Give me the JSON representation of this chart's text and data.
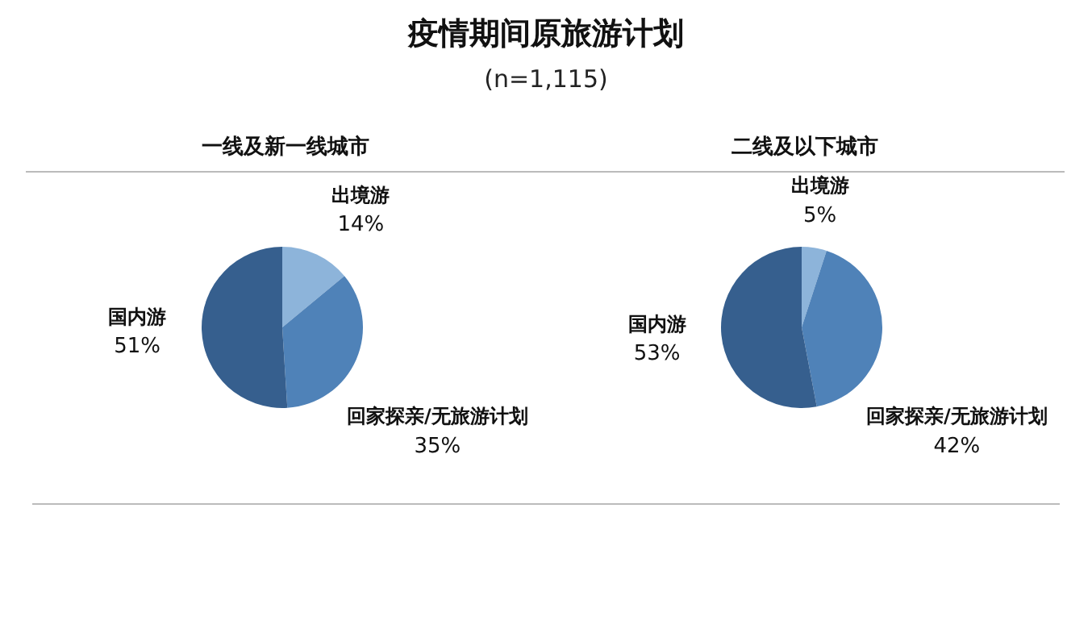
{
  "chart_data": [
    {
      "type": "pie",
      "title": "一线及新一线城市",
      "annotations": [
        "疫情期间原旅游计划",
        "(n=1,115)"
      ],
      "categories": [
        "出境游",
        "回家探亲/无旅游计划",
        "国内游"
      ],
      "values": [
        14,
        35,
        51
      ],
      "value_labels": [
        "14%",
        "35%",
        "51%"
      ],
      "colors": [
        "#8db4da",
        "#4f82b8",
        "#365f8e"
      ],
      "legend": false
    },
    {
      "type": "pie",
      "title": "二线及以下城市",
      "categories": [
        "出境游",
        "回家探亲/无旅游计划",
        "国内游"
      ],
      "values": [
        5,
        42,
        53
      ],
      "value_labels": [
        "5%",
        "42%",
        "53%"
      ],
      "colors": [
        "#8db4da",
        "#4f82b8",
        "#365f8e"
      ],
      "legend": false
    }
  ]
}
